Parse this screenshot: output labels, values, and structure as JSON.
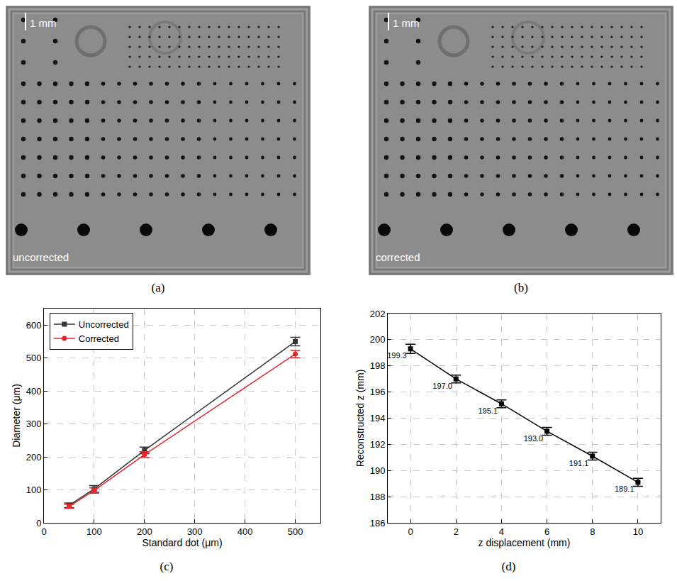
{
  "images": [
    {
      "label": "(a)",
      "caption": "uncorrected",
      "scale_bar": "1 mm"
    },
    {
      "label": "(b)",
      "caption": "corrected",
      "scale_bar": "1 mm"
    }
  ],
  "chart_data": [
    {
      "label": "(c)",
      "type": "line",
      "x_label": "Standard dot (μm)",
      "y_label": "Diameter (μm)",
      "x": [
        50,
        100,
        200,
        500
      ],
      "series": [
        {
          "name": "Uncorrected",
          "color": "#333333",
          "marker": "square",
          "values": [
            53,
            103,
            220,
            550
          ],
          "errors": [
            7,
            10,
            10,
            13
          ]
        },
        {
          "name": "Corrected",
          "color": "#e8262a",
          "marker": "circle",
          "values": [
            50,
            98,
            207,
            512
          ],
          "errors": [
            6,
            8,
            9,
            11
          ]
        }
      ],
      "xlim": [
        0,
        550
      ],
      "ylim": [
        0,
        650
      ],
      "xticks": [
        0,
        100,
        200,
        300,
        400,
        500
      ],
      "yticks": [
        0,
        100,
        200,
        300,
        400,
        500,
        600
      ],
      "grid": true,
      "legend": "top left"
    },
    {
      "label": "(d)",
      "type": "line",
      "x_label": "z displacement (mm)",
      "y_label": "Reconstructed z (mm)",
      "x": [
        0,
        2,
        4,
        6,
        8,
        10
      ],
      "series": [
        {
          "color": "#000000",
          "marker": "square",
          "values": [
            199.3,
            197.0,
            195.1,
            193.0,
            191.1,
            189.1
          ],
          "value_labels": [
            "199.3",
            "197.0",
            "195.1",
            "193.0",
            "191.1",
            "189.1"
          ],
          "errors": [
            0.35,
            0.3,
            0.3,
            0.3,
            0.3,
            0.3
          ]
        }
      ],
      "xlim": [
        -1,
        11
      ],
      "ylim": [
        186,
        202
      ],
      "xticks": [
        0,
        2,
        4,
        6,
        8,
        10
      ],
      "yticks": [
        186,
        188,
        190,
        192,
        194,
        196,
        198,
        200,
        202
      ],
      "grid": true,
      "data_labels": true
    }
  ]
}
